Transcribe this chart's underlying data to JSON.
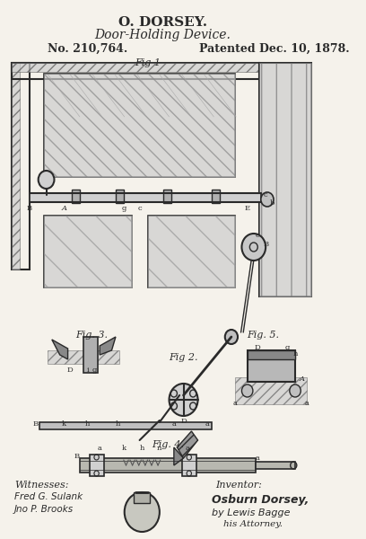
{
  "title_line1": "O. DORSEY.",
  "title_line2": "Door-Holding Device.",
  "patent_no": "No. 210,764.",
  "patent_date": "Patented Dec. 10, 1878.",
  "fig_labels": [
    "Fig 1",
    "Fig 2.",
    "Fig. 3.",
    "Fig. 5.",
    "Fig. 4."
  ],
  "witnesses_label": "Witnesses:",
  "inventor_label": "Inventor:",
  "witness1": "Fred G. Sulank",
  "witness2": "Jno P. Brooks",
  "inventor_name": "Osburn Dorsey,",
  "attorney_by": "by Lewis Bagge",
  "attorney_title": "his Attorney.",
  "bg_color": "#f0ece0",
  "line_color": "#2a2a2a",
  "hatch_color": "#444444",
  "title_fontsize": 11,
  "subtitle_fontsize": 10,
  "patent_fontsize": 9,
  "fig_width": 4.08,
  "fig_height": 6.0,
  "dpi": 100
}
